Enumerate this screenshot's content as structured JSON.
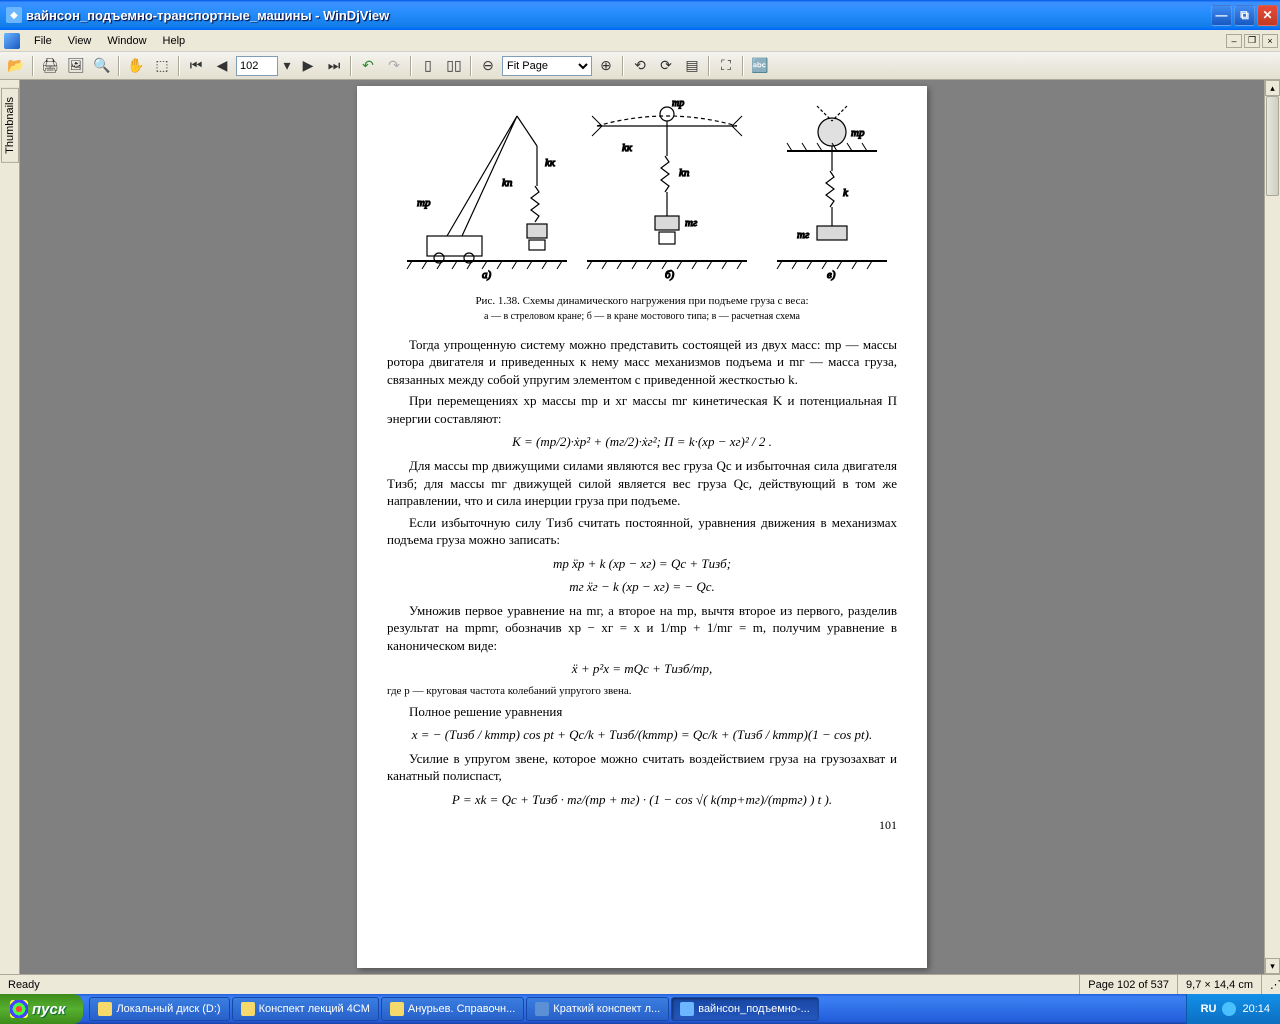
{
  "title": "вайнсон_подъемно-транспортные_машины - WinDjView",
  "menus": [
    "File",
    "View",
    "Window",
    "Help"
  ],
  "toolbar": {
    "page_current": "102",
    "zoom_selected": "Fit Page"
  },
  "thumbnails_tab": "Thumbnails",
  "document": {
    "fig_label": "Рис. 1.38. Схемы динамического нагружения при подъеме груза с веса:",
    "fig_sub": "а — в стреловом кране; б — в кране мостового типа; в — расчетная схема",
    "p1": "Тогда упрощенную систему можно представить состоящей из двух масс: mр — массы ротора двигателя и приведенных к нему масс механизмов подъема и mг — масса груза, связанных между собой упругим элементом с приведенной жесткостью k.",
    "p2": "При перемещениях xр массы mр и xг массы mг кинетическая K и потенциальная П энергии составляют:",
    "eq1": "K = (mр/2)·ẋр² + (mг/2)·ẋг²;   П = k·(xр − xг)² / 2 .",
    "p3": "Для массы mр движущими силами являются вес груза Qс и избыточная сила двигателя Tизб; для массы mг движущей силой является вес груза Qс, действующий в том же направлении, что и сила инерции груза при подъеме.",
    "p4": "Если избыточную силу Tизб считать постоянной, уравнения движения в механизмах подъема груза можно записать:",
    "eq2a": "mр ẍр + k (xр − xг) = Qс + Tизб;",
    "eq2b": "mг ẍг − k (xр − xг) = − Qс.",
    "p5": "Умножив первое уравнение на mг, а второе на mр, вычтя второе из первого, разделив результат на mрmг, обозначив xр − xг = x и 1/mр + 1/mг = m, получим уравнение в каноническом виде:",
    "eq3": "ẍ + p²x = mQс + Tизб/mр,",
    "where": "где p — круговая частота колебаний упругого звена.",
    "p6": "Полное решение уравнения",
    "eq4": "x = − (Tизб / kmmр) cos pt + Qс/k + Tизб/(kmmр) = Qс/k + (Tизб / kmmр)(1 − cos pt).",
    "p7": "Усилие в упругом звене, которое можно считать воздействием груза на грузозахват и канатный полиспаст,",
    "eq5": "P = xk = Qс + Tизб · mг/(mр + mг) · (1 − cos √( k(mр+mг)/(mрmг) ) t ).",
    "page_number": "101"
  },
  "status": {
    "ready": "Ready",
    "page_of": "Page 102 of 537",
    "cursor_pos": "9,7 × 14,4 cm"
  },
  "taskbar": {
    "start": "пуск",
    "items": [
      {
        "label": "Локальный диск (D:)",
        "active": false,
        "icon": "#f5d96b"
      },
      {
        "label": "Конспект лекций 4СМ",
        "active": false,
        "icon": "#f5d96b"
      },
      {
        "label": "Анурьев. Справочн...",
        "active": false,
        "icon": "#f5d96b"
      },
      {
        "label": "Краткий конспект л...",
        "active": false,
        "icon": "#5b8fd6"
      },
      {
        "label": "вайнсон_подъемно-...",
        "active": true,
        "icon": "#6bb6ff"
      }
    ],
    "lang": "RU",
    "time": "20:14"
  },
  "colors": {
    "xp_blue": "#245edb",
    "xp_green": "#3c8b1a",
    "panel": "#ece9d8",
    "doc_bg": "#808080"
  }
}
